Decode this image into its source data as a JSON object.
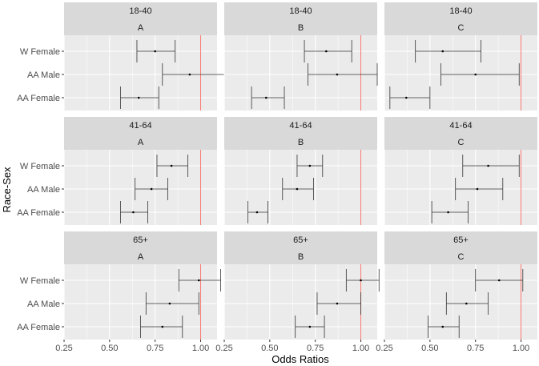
{
  "chart_data": {
    "type": "forest",
    "xlabel": "Odds Ratios",
    "ylabel": "Race-Sex",
    "xlim": [
      0.25,
      1.09
    ],
    "xticks": [
      "0.25",
      "0.50",
      "0.75",
      "1.00"
    ],
    "reference_line": 1.0,
    "reference_color": "#f8766d",
    "categories": [
      "W Female",
      "AA Male",
      "AA Female"
    ],
    "colors": {
      "panel_bg": "#ebebeb",
      "strip_bg": "#d9d9d9",
      "grid": "#ffffff",
      "errorbar": "#333333"
    },
    "panels": [
      {
        "age": "18-40",
        "group": "A",
        "rows": [
          {
            "label": "W Female",
            "est": 0.75,
            "lo": 0.65,
            "hi": 0.86
          },
          {
            "label": "AA Male",
            "est": 0.94,
            "lo": 0.79,
            "hi": 1.13
          },
          {
            "label": "AA Female",
            "est": 0.66,
            "lo": 0.56,
            "hi": 0.77
          }
        ]
      },
      {
        "age": "18-40",
        "group": "B",
        "rows": [
          {
            "label": "W Female",
            "est": 0.81,
            "lo": 0.69,
            "hi": 0.95
          },
          {
            "label": "AA Male",
            "est": 0.87,
            "lo": 0.71,
            "hi": 1.09
          },
          {
            "label": "AA Female",
            "est": 0.48,
            "lo": 0.4,
            "hi": 0.58
          }
        ]
      },
      {
        "age": "18-40",
        "group": "C",
        "rows": [
          {
            "label": "W Female",
            "est": 0.57,
            "lo": 0.42,
            "hi": 0.78
          },
          {
            "label": "AA Male",
            "est": 0.75,
            "lo": 0.56,
            "hi": 0.99
          },
          {
            "label": "AA Female",
            "est": 0.37,
            "lo": 0.28,
            "hi": 0.5
          }
        ]
      },
      {
        "age": "41-64",
        "group": "A",
        "rows": [
          {
            "label": "W Female",
            "est": 0.84,
            "lo": 0.76,
            "hi": 0.93
          },
          {
            "label": "AA Male",
            "est": 0.73,
            "lo": 0.64,
            "hi": 0.82
          },
          {
            "label": "AA Female",
            "est": 0.63,
            "lo": 0.56,
            "hi": 0.71
          }
        ]
      },
      {
        "age": "41-64",
        "group": "B",
        "rows": [
          {
            "label": "W Female",
            "est": 0.72,
            "lo": 0.65,
            "hi": 0.79
          },
          {
            "label": "AA Male",
            "est": 0.65,
            "lo": 0.57,
            "hi": 0.74
          },
          {
            "label": "AA Female",
            "est": 0.43,
            "lo": 0.38,
            "hi": 0.49
          }
        ]
      },
      {
        "age": "41-64",
        "group": "C",
        "rows": [
          {
            "label": "W Female",
            "est": 0.82,
            "lo": 0.68,
            "hi": 0.99
          },
          {
            "label": "AA Male",
            "est": 0.76,
            "lo": 0.64,
            "hi": 0.9
          },
          {
            "label": "AA Female",
            "est": 0.6,
            "lo": 0.51,
            "hi": 0.71
          }
        ]
      },
      {
        "age": "65+",
        "group": "A",
        "rows": [
          {
            "label": "W Female",
            "est": 0.99,
            "lo": 0.88,
            "hi": 1.11
          },
          {
            "label": "AA Male",
            "est": 0.83,
            "lo": 0.7,
            "hi": 0.99
          },
          {
            "label": "AA Female",
            "est": 0.79,
            "lo": 0.67,
            "hi": 0.9
          }
        ]
      },
      {
        "age": "65+",
        "group": "B",
        "rows": [
          {
            "label": "W Female",
            "est": 1.0,
            "lo": 0.92,
            "hi": 1.1
          },
          {
            "label": "AA Male",
            "est": 0.87,
            "lo": 0.76,
            "hi": 1.0
          },
          {
            "label": "AA Female",
            "est": 0.72,
            "lo": 0.64,
            "hi": 0.8
          }
        ]
      },
      {
        "age": "65+",
        "group": "C",
        "rows": [
          {
            "label": "W Female",
            "est": 0.88,
            "lo": 0.75,
            "hi": 1.01
          },
          {
            "label": "AA Male",
            "est": 0.7,
            "lo": 0.59,
            "hi": 0.82
          },
          {
            "label": "AA Female",
            "est": 0.57,
            "lo": 0.49,
            "hi": 0.66
          }
        ]
      }
    ]
  }
}
